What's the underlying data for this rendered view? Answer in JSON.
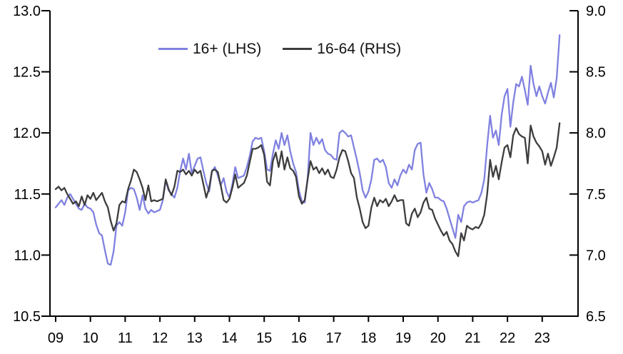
{
  "chart_data": {
    "type": "line",
    "title": "",
    "x_unit": "year",
    "x_start": 2009,
    "points_per_year": 12,
    "x_tick_labels": [
      "09",
      "10",
      "11",
      "12",
      "13",
      "14",
      "15",
      "16",
      "17",
      "18",
      "19",
      "20",
      "21",
      "22",
      "23"
    ],
    "left_axis": {
      "min": 10.5,
      "max": 13.0,
      "tick_labels": [
        "13.0",
        "12.5",
        "12.0",
        "11.5",
        "11.0",
        "10.5"
      ],
      "tick_values": [
        13.0,
        12.5,
        12.0,
        11.5,
        11.0,
        10.5
      ]
    },
    "right_axis": {
      "min": 6.5,
      "max": 9.0,
      "tick_labels": [
        "9.0",
        "8.5",
        "8.0",
        "7.5",
        "7.0",
        "6.5"
      ],
      "tick_values": [
        9.0,
        8.5,
        8.0,
        7.5,
        7.0,
        6.5
      ]
    },
    "grid": false,
    "legend_position": "top-center",
    "series": [
      {
        "name": "16+ (LHS)",
        "axis": "left",
        "color": "#8081e0",
        "values": [
          11.39,
          11.42,
          11.45,
          11.41,
          11.47,
          11.5,
          11.46,
          11.42,
          11.38,
          11.37,
          11.42,
          11.39,
          11.38,
          11.35,
          11.25,
          11.18,
          11.16,
          11.04,
          10.93,
          10.92,
          11.03,
          11.24,
          11.27,
          11.24,
          11.35,
          11.53,
          11.55,
          11.54,
          11.47,
          11.37,
          11.49,
          11.38,
          11.34,
          11.37,
          11.35,
          11.36,
          11.37,
          11.45,
          11.61,
          11.53,
          11.5,
          11.47,
          11.55,
          11.69,
          11.79,
          11.7,
          11.83,
          11.67,
          11.73,
          11.79,
          11.8,
          11.69,
          11.59,
          11.52,
          11.69,
          11.72,
          11.65,
          11.57,
          11.63,
          11.52,
          11.47,
          11.58,
          11.72,
          11.63,
          11.64,
          11.65,
          11.72,
          11.81,
          11.93,
          11.96,
          11.95,
          11.96,
          11.85,
          11.7,
          11.69,
          11.83,
          11.94,
          11.87,
          12.0,
          11.9,
          11.98,
          11.85,
          11.75,
          11.68,
          11.53,
          11.44,
          11.43,
          11.63,
          12.0,
          11.9,
          11.96,
          11.91,
          11.95,
          11.86,
          11.83,
          11.82,
          11.79,
          11.78,
          12.0,
          12.02,
          12.0,
          11.97,
          11.98,
          11.88,
          11.78,
          11.67,
          11.53,
          11.47,
          11.52,
          11.62,
          11.78,
          11.79,
          11.76,
          11.78,
          11.72,
          11.59,
          11.55,
          11.62,
          11.57,
          11.65,
          11.7,
          11.67,
          11.74,
          11.7,
          11.86,
          11.91,
          11.92,
          11.66,
          11.51,
          11.59,
          11.54,
          11.47,
          11.47,
          11.45,
          11.44,
          11.38,
          11.3,
          11.22,
          11.14,
          11.33,
          11.27,
          11.4,
          11.43,
          11.44,
          11.43,
          11.44,
          11.45,
          11.51,
          11.62,
          11.9,
          12.14,
          11.96,
          12.02,
          11.9,
          12.15,
          12.3,
          12.36,
          12.05,
          12.25,
          12.4,
          12.38,
          12.46,
          12.35,
          12.23,
          12.55,
          12.4,
          12.3,
          12.38,
          12.3,
          12.24,
          12.33,
          12.41,
          12.29,
          12.45,
          12.8
        ]
      },
      {
        "name": "16-64 (RHS)",
        "axis": "right",
        "color": "#3d3d3d",
        "values": [
          7.54,
          7.56,
          7.53,
          7.55,
          7.5,
          7.46,
          7.42,
          7.44,
          7.4,
          7.48,
          7.41,
          7.49,
          7.46,
          7.51,
          7.45,
          7.48,
          7.51,
          7.44,
          7.39,
          7.28,
          7.2,
          7.26,
          7.41,
          7.44,
          7.43,
          7.54,
          7.61,
          7.7,
          7.68,
          7.62,
          7.55,
          7.45,
          7.57,
          7.44,
          7.45,
          7.44,
          7.45,
          7.46,
          7.62,
          7.54,
          7.49,
          7.56,
          7.69,
          7.68,
          7.7,
          7.66,
          7.69,
          7.65,
          7.7,
          7.67,
          7.69,
          7.58,
          7.47,
          7.55,
          7.69,
          7.7,
          7.68,
          7.57,
          7.45,
          7.43,
          7.46,
          7.55,
          7.66,
          7.55,
          7.57,
          7.59,
          7.65,
          7.76,
          7.87,
          7.87,
          7.88,
          7.9,
          7.82,
          7.6,
          7.57,
          7.77,
          7.84,
          7.72,
          7.85,
          7.7,
          7.8,
          7.71,
          7.69,
          7.64,
          7.48,
          7.42,
          7.45,
          7.62,
          7.77,
          7.7,
          7.72,
          7.67,
          7.71,
          7.66,
          7.7,
          7.64,
          7.63,
          7.7,
          7.8,
          7.86,
          7.85,
          7.77,
          7.67,
          7.63,
          7.47,
          7.38,
          7.27,
          7.22,
          7.24,
          7.39,
          7.47,
          7.4,
          7.45,
          7.43,
          7.46,
          7.4,
          7.44,
          7.49,
          7.44,
          7.45,
          7.45,
          7.26,
          7.24,
          7.34,
          7.38,
          7.31,
          7.35,
          7.43,
          7.47,
          7.38,
          7.37,
          7.3,
          7.25,
          7.2,
          7.16,
          7.19,
          7.12,
          7.09,
          7.03,
          6.99,
          7.18,
          7.12,
          7.24,
          7.22,
          7.21,
          7.23,
          7.22,
          7.26,
          7.33,
          7.5,
          7.78,
          7.64,
          7.73,
          7.62,
          7.76,
          7.88,
          7.9,
          7.8,
          7.98,
          8.04,
          7.99,
          7.97,
          7.96,
          7.75,
          8.06,
          7.97,
          7.92,
          7.89,
          7.85,
          7.74,
          7.83,
          7.73,
          7.8,
          7.88,
          8.08
        ]
      }
    ]
  },
  "colors": {
    "axis": "#000000",
    "tick_text": "#000000",
    "background": "#ffffff"
  }
}
